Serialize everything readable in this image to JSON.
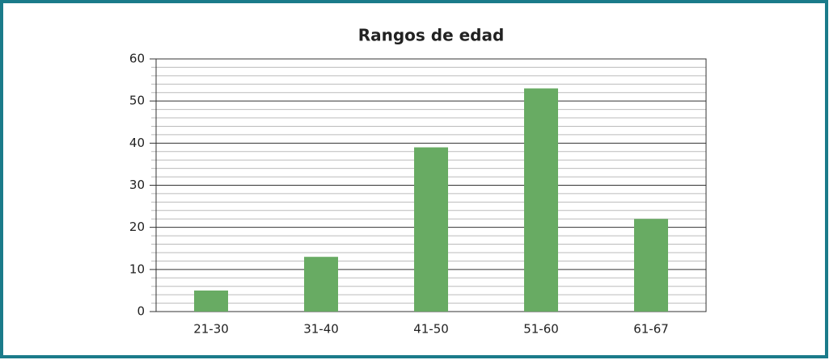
{
  "chart_data": {
    "type": "bar",
    "title": "Rangos de edad",
    "categories": [
      "21-30",
      "31-40",
      "41-50",
      "51-60",
      "61-67"
    ],
    "values": [
      5,
      13,
      39,
      53,
      22
    ],
    "color": "#68ab63",
    "ylim": [
      0,
      60
    ],
    "yticks": [
      0,
      10,
      20,
      30,
      40,
      50,
      60
    ],
    "grid": true
  }
}
